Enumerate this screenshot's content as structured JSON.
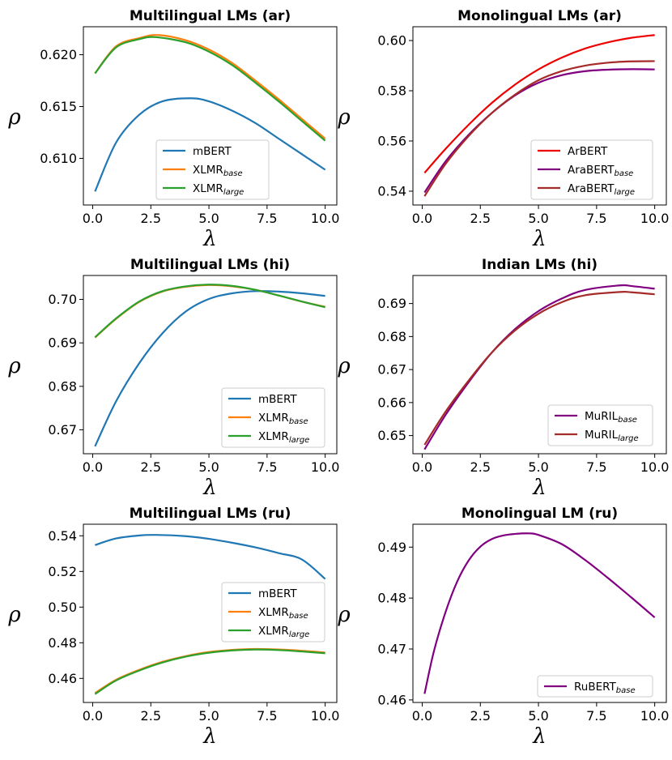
{
  "chart_data": [
    {
      "type": "line",
      "title": "Multilingual LMs (ar)",
      "xlabel": "λ",
      "ylabel": "ρ",
      "xlim": [
        -0.4,
        10.5
      ],
      "ylim": [
        0.6055,
        0.6227
      ],
      "xticks": [
        "0.0",
        "2.5",
        "5.0",
        "7.5",
        "10.0"
      ],
      "yticks": [
        "0.610",
        "0.615",
        "0.620"
      ],
      "legend_position": "lower-right",
      "series": [
        {
          "name": "mBERT",
          "sub": "",
          "color": "#1f77b4",
          "x": [
            0.1,
            1,
            2,
            3,
            4.2,
            5,
            6,
            7,
            8,
            9,
            10
          ],
          "y": [
            0.6068,
            0.6115,
            0.6142,
            0.6155,
            0.6158,
            0.6155,
            0.6146,
            0.6134,
            0.6119,
            0.6104,
            0.6089
          ]
        },
        {
          "name": "XLMR",
          "sub": "base",
          "color": "#ff7f0e",
          "x": [
            0.1,
            1,
            2,
            2.8,
            4,
            5,
            6,
            7,
            8,
            9,
            10
          ],
          "y": [
            0.6182,
            0.6208,
            0.6216,
            0.6219,
            0.6214,
            0.6205,
            0.6192,
            0.6175,
            0.6157,
            0.6138,
            0.6119
          ]
        },
        {
          "name": "XLMR",
          "sub": "large",
          "color": "#2ca02c",
          "x": [
            0.1,
            1,
            2,
            2.7,
            4,
            5,
            6,
            7,
            8,
            9,
            10
          ],
          "y": [
            0.6182,
            0.6207,
            0.6215,
            0.6217,
            0.6212,
            0.6203,
            0.619,
            0.6173,
            0.6155,
            0.6136,
            0.6117
          ]
        }
      ]
    },
    {
      "type": "line",
      "title": "Monolingual LMs (ar)",
      "xlabel": "λ",
      "ylabel": "ρ",
      "xlim": [
        -0.4,
        10.5
      ],
      "ylim": [
        0.5345,
        0.6055
      ],
      "xticks": [
        "0.0",
        "2.5",
        "5.0",
        "7.5",
        "10.0"
      ],
      "yticks": [
        "0.54",
        "0.56",
        "0.58",
        "0.60"
      ],
      "legend_position": "lower-right",
      "series": [
        {
          "name": "ArBERT",
          "sub": "",
          "color": "#ee0000",
          "x": [
            0.1,
            1,
            2,
            3,
            4,
            5,
            6,
            7,
            8,
            9,
            10
          ],
          "y": [
            0.5473,
            0.5568,
            0.5665,
            0.5752,
            0.5825,
            0.5885,
            0.5932,
            0.5968,
            0.5993,
            0.6011,
            0.6022
          ]
        },
        {
          "name": "AraBERT",
          "sub": "base",
          "color": "#800080",
          "x": [
            0.1,
            1,
            2,
            3,
            4,
            5,
            6,
            7,
            8,
            9,
            10
          ],
          "y": [
            0.5395,
            0.5518,
            0.5625,
            0.5712,
            0.5782,
            0.5832,
            0.5862,
            0.5878,
            0.5884,
            0.5886,
            0.5885
          ]
        },
        {
          "name": "AraBERT",
          "sub": "large",
          "color": "#a52a2a",
          "x": [
            0.1,
            1,
            2,
            3,
            4,
            5,
            6,
            7,
            8,
            9,
            10
          ],
          "y": [
            0.538,
            0.5508,
            0.562,
            0.5712,
            0.5785,
            0.5842,
            0.5878,
            0.59,
            0.5912,
            0.5917,
            0.5918
          ]
        }
      ]
    },
    {
      "type": "line",
      "title": "Multilingual LMs (hi)",
      "xlabel": "λ",
      "ylabel": "ρ",
      "xlim": [
        -0.4,
        10.5
      ],
      "ylim": [
        0.6645,
        0.7055
      ],
      "xticks": [
        "0.0",
        "2.5",
        "5.0",
        "7.5",
        "10.0"
      ],
      "yticks": [
        "0.67",
        "0.68",
        "0.69",
        "0.70"
      ],
      "legend_position": "lower-right",
      "series": [
        {
          "name": "mBERT",
          "sub": "",
          "color": "#1f77b4",
          "x": [
            0.1,
            1,
            2,
            3,
            4,
            5,
            6,
            7,
            8,
            9,
            10
          ],
          "y": [
            0.6662,
            0.6765,
            0.6853,
            0.6922,
            0.6972,
            0.7001,
            0.7014,
            0.7019,
            0.7018,
            0.7014,
            0.7008
          ]
        },
        {
          "name": "XLMR",
          "sub": "base",
          "color": "#ff7f0e",
          "x": [
            0.1,
            1,
            2,
            3,
            4,
            5,
            6,
            7,
            8,
            9,
            10
          ],
          "y": [
            0.6912,
            0.6955,
            0.6994,
            0.7018,
            0.7029,
            0.7033,
            0.703,
            0.7022,
            0.7009,
            0.6995,
            0.6983
          ]
        },
        {
          "name": "XLMR",
          "sub": "large",
          "color": "#2ca02c",
          "x": [
            0.1,
            1,
            2,
            3,
            4,
            5,
            6,
            7,
            8,
            9,
            10
          ],
          "y": [
            0.6913,
            0.6956,
            0.6995,
            0.7019,
            0.703,
            0.7034,
            0.7031,
            0.7022,
            0.7009,
            0.6995,
            0.6982
          ]
        }
      ]
    },
    {
      "type": "line",
      "title": "Indian LMs (hi)",
      "xlabel": "λ",
      "ylabel": "ρ",
      "xlim": [
        -0.4,
        10.5
      ],
      "ylim": [
        0.6445,
        0.6985
      ],
      "xticks": [
        "0.0",
        "2.5",
        "5.0",
        "7.5",
        "10.0"
      ],
      "yticks": [
        "0.65",
        "0.66",
        "0.67",
        "0.68",
        "0.69"
      ],
      "legend_position": "lower-right",
      "series": [
        {
          "name": "MuRIL",
          "sub": "base",
          "color": "#800080",
          "x": [
            0.1,
            1,
            2,
            3,
            4,
            5,
            6,
            7,
            8.5,
            9,
            10
          ],
          "y": [
            0.6458,
            0.6562,
            0.6662,
            0.6752,
            0.6823,
            0.6877,
            0.6915,
            0.6941,
            0.6955,
            0.6953,
            0.6945
          ]
        },
        {
          "name": "MuRIL",
          "sub": "large",
          "color": "#a52a2a",
          "x": [
            0.1,
            1,
            2,
            3,
            4,
            5,
            6,
            7,
            8.5,
            9,
            10
          ],
          "y": [
            0.6472,
            0.6572,
            0.6667,
            0.6752,
            0.6819,
            0.6869,
            0.6904,
            0.6925,
            0.6935,
            0.6934,
            0.6928
          ]
        }
      ]
    },
    {
      "type": "line",
      "title": "Multilingual LMs (ru)",
      "xlabel": "λ",
      "ylabel": "ρ",
      "xlim": [
        -0.4,
        10.5
      ],
      "ylim": [
        0.4465,
        0.5465
      ],
      "xticks": [
        "0.0",
        "2.5",
        "5.0",
        "7.5",
        "10.0"
      ],
      "yticks": [
        "0.46",
        "0.48",
        "0.50",
        "0.52",
        "0.54"
      ],
      "legend_position": "center-right",
      "series": [
        {
          "name": "mBERT",
          "sub": "",
          "color": "#1f77b4",
          "x": [
            0.1,
            1,
            2,
            2.7,
            4,
            5,
            6,
            7,
            8,
            9,
            10
          ],
          "y": [
            0.5348,
            0.5385,
            0.5402,
            0.5405,
            0.5398,
            0.5383,
            0.5361,
            0.5335,
            0.5303,
            0.5267,
            0.5158
          ]
        },
        {
          "name": "XLMR",
          "sub": "base",
          "color": "#ff7f0e",
          "x": [
            0.1,
            1,
            2,
            3,
            4,
            5,
            6,
            7,
            8,
            9,
            10
          ],
          "y": [
            0.4518,
            0.4592,
            0.4648,
            0.4693,
            0.4725,
            0.4748,
            0.476,
            0.4765,
            0.4762,
            0.4755,
            0.4745
          ]
        },
        {
          "name": "XLMR",
          "sub": "large",
          "color": "#2ca02c",
          "x": [
            0.1,
            1,
            2,
            3,
            4,
            5,
            6,
            7,
            8,
            9,
            10
          ],
          "y": [
            0.4512,
            0.4588,
            0.4644,
            0.4689,
            0.4722,
            0.4744,
            0.4757,
            0.4762,
            0.4759,
            0.4751,
            0.4741
          ]
        }
      ]
    },
    {
      "type": "line",
      "title": "Monolingual LM (ru)",
      "xlabel": "λ",
      "ylabel": "ρ",
      "xlim": [
        -0.4,
        10.5
      ],
      "ylim": [
        0.4595,
        0.4945
      ],
      "xticks": [
        "0.0",
        "2.5",
        "5.0",
        "7.5",
        "10.0"
      ],
      "yticks": [
        "0.46",
        "0.47",
        "0.48",
        "0.49"
      ],
      "legend_position": "lower-right",
      "series": [
        {
          "name": "RuBERT",
          "sub": "base",
          "color": "#800080",
          "x": [
            0.1,
            0.5,
            1,
            1.5,
            2,
            2.5,
            3,
            3.5,
            4,
            4.6,
            5,
            6,
            7,
            8,
            9,
            10
          ],
          "y": [
            0.4612,
            0.4695,
            0.4772,
            0.4832,
            0.4874,
            0.4901,
            0.4916,
            0.4923,
            0.4926,
            0.4927,
            0.4924,
            0.4906,
            0.4875,
            0.4839,
            0.4801,
            0.4762
          ]
        }
      ]
    }
  ]
}
